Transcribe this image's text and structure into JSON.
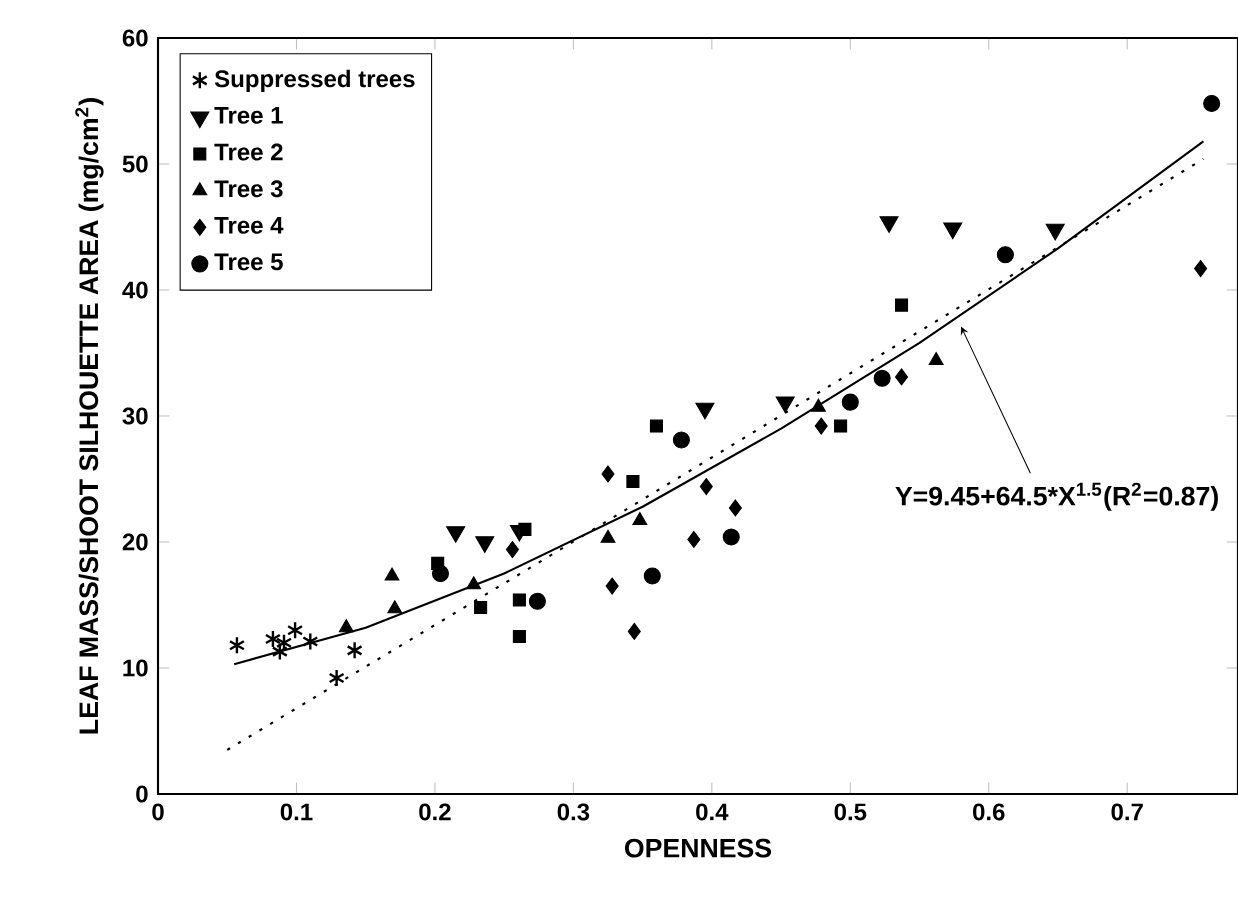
{
  "chart_data": {
    "type": "scatter",
    "xlabel": "OPENNESS",
    "ylabel": "LEAF MASS/SHOOT SILHOUETTE AREA (mg/cm$^{2}$)",
    "xlim": [
      0,
      0.78
    ],
    "ylim": [
      0,
      60
    ],
    "xticks": [
      0,
      0.1,
      0.2,
      0.3,
      0.4,
      0.5,
      0.6,
      0.7
    ],
    "yticks": [
      0,
      10,
      20,
      30,
      40,
      50,
      60
    ],
    "grid": false,
    "legend": "top left",
    "series": [
      {
        "name": "Suppressed trees",
        "color": "#000000",
        "marker": "cross",
        "x": [
          0.057,
          0.083,
          0.088,
          0.091,
          0.099,
          0.11,
          0.142,
          0.129
        ],
        "values": [
          11.8,
          12.3,
          11.3,
          12.0,
          13.0,
          12.1,
          11.4,
          9.2
        ]
      },
      {
        "name": "Tree 1",
        "color": "#000000",
        "marker": "triangle_down",
        "x": [
          0.215,
          0.236,
          0.261,
          0.395,
          0.453,
          0.528,
          0.574,
          0.648
        ],
        "values": [
          20.8,
          20.0,
          20.9,
          30.6,
          31.1,
          45.4,
          44.9,
          44.8
        ]
      },
      {
        "name": "Tree 2",
        "color": "#000000",
        "marker": "square",
        "x": [
          0.265,
          0.202,
          0.233,
          0.261,
          0.261,
          0.36,
          0.343,
          0.493,
          0.537
        ],
        "values": [
          21.0,
          18.3,
          14.8,
          15.4,
          12.5,
          29.2,
          24.8,
          29.2,
          38.8
        ]
      },
      {
        "name": "Tree 3",
        "color": "#000000",
        "marker": "triangle",
        "x": [
          0.169,
          0.171,
          0.136,
          0.228,
          0.325,
          0.348,
          0.477,
          0.562
        ],
        "values": [
          17.3,
          14.7,
          13.2,
          16.6,
          20.3,
          21.7,
          30.7,
          34.4
        ]
      },
      {
        "name": "Tree 4",
        "color": "#000000",
        "marker": "diamond",
        "x": [
          0.256,
          0.325,
          0.396,
          0.417,
          0.387,
          0.328,
          0.344,
          0.479,
          0.537,
          0.753
        ],
        "values": [
          19.4,
          25.4,
          24.4,
          22.7,
          20.2,
          16.5,
          12.9,
          29.2,
          33.1,
          41.7
        ]
      },
      {
        "name": "Tree 5",
        "color": "#000000",
        "marker": "circle",
        "x": [
          0.204,
          0.274,
          0.378,
          0.414,
          0.357,
          0.5,
          0.523,
          0.612,
          0.761
        ],
        "values": [
          17.5,
          15.3,
          28.1,
          20.4,
          17.3,
          31.1,
          33.0,
          42.8,
          54.8
        ]
      },
      {
        "type": "line",
        "color": "#000000",
        "marker": "none",
        "line_style": "solid",
        "x": [
          0.055,
          0.15,
          0.25,
          0.35,
          0.45,
          0.55,
          0.65,
          0.755
        ],
        "values": [
          10.3,
          13.2,
          17.5,
          22.8,
          29.0,
          35.8,
          43.3,
          51.8
        ]
      },
      {
        "type": "line",
        "color": "#000000",
        "marker": "none",
        "line_style": "dotted",
        "x": [
          0.05,
          0.274,
          0.755
        ],
        "values": [
          3.5,
          18.3,
          50.4
        ]
      }
    ],
    "annotations": [
      {
        "text": "Y=9.45+64.5*X$^{1.5}$(R$^{2}$=0.87)",
        "x": 0.58,
        "y": 37.1
      }
    ]
  }
}
